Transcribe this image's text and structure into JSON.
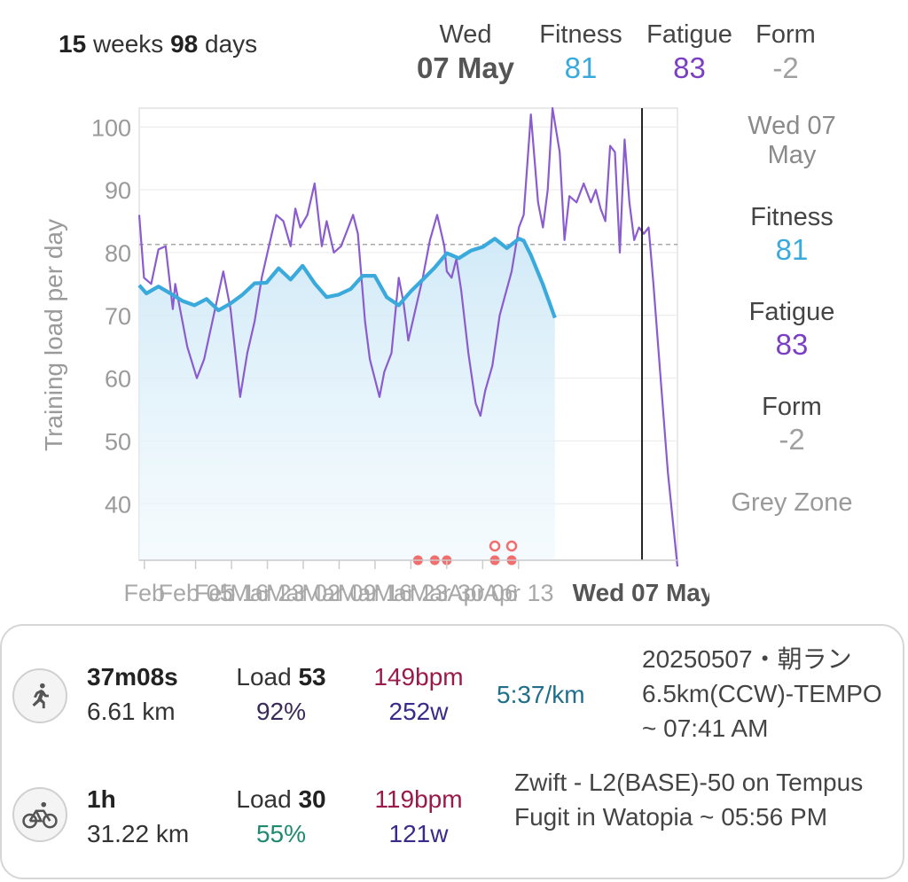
{
  "period": {
    "weeks_value": "15",
    "weeks_label": "weeks",
    "days_value": "98",
    "days_label": "days"
  },
  "header": {
    "day": "Wed",
    "date": "07 May",
    "fitness_label": "Fitness",
    "fitness_value": "81",
    "fatigue_label": "Fatigue",
    "fatigue_value": "83",
    "form_label": "Form",
    "form_value": "-2"
  },
  "side_panel": {
    "date": "Wed 07 May",
    "fitness_label": "Fitness",
    "fitness_value": "81",
    "fatigue_label": "Fatigue",
    "fatigue_value": "83",
    "form_label": "Form",
    "form_value": "-2",
    "zone": "Grey Zone"
  },
  "colors": {
    "fitness": "#3aa9dc",
    "fatigue": "#8a5ccf",
    "form": "#a0a0a0",
    "activity_dot": "#f26d6d",
    "hr": "#9a1a4a",
    "watt": "#3a2a8a",
    "pace": "#1f6f8b",
    "percent_green": "#1f8a6f",
    "percent_purple": "#3a2a5a"
  },
  "chart_data": {
    "type": "line",
    "ylabel": "Training load per day",
    "ylim": [
      31,
      103
    ],
    "yticks": [
      100,
      90,
      80,
      70,
      60,
      50,
      40
    ],
    "reference_line": 81.3,
    "x_tick_labels": [
      "Feb",
      "Feb 05",
      "Feb 16",
      "Mar 23",
      "Mar 02",
      "Mar 09",
      "Mar 16",
      "Mar 23",
      "Mar 30",
      "Apr 06",
      "Apr 13"
    ],
    "x_selected_label": "Wed 07 May",
    "x_start": "2025-01-29",
    "x_end": "2025-05-14",
    "selected": "2025-05-07",
    "series": [
      {
        "name": "Fitness",
        "values": [
          [
            0,
            74.8
          ],
          [
            3,
            73.5
          ],
          [
            8,
            74.6
          ],
          [
            13,
            73.5
          ],
          [
            18,
            72.3
          ],
          [
            23,
            71.6
          ],
          [
            28,
            72.6
          ],
          [
            33,
            70.8
          ],
          [
            38,
            71.9
          ],
          [
            43,
            73.3
          ],
          [
            48,
            75.1
          ],
          [
            53,
            75.2
          ],
          [
            58,
            77.5
          ],
          [
            63,
            75.7
          ],
          [
            68,
            77.9
          ],
          [
            73,
            75.1
          ],
          [
            78,
            72.9
          ],
          [
            83,
            73.3
          ],
          [
            88,
            74.2
          ],
          [
            93,
            76.3
          ],
          [
            98,
            76.3
          ],
          [
            103,
            72.9
          ],
          [
            108,
            71.6
          ],
          [
            113,
            73.8
          ],
          [
            118,
            75.7
          ],
          [
            123,
            77.6
          ],
          [
            128,
            79.9
          ],
          [
            133,
            79.1
          ],
          [
            138,
            80.3
          ],
          [
            143,
            80.9
          ],
          [
            148,
            82.2
          ],
          [
            153,
            80.7
          ],
          [
            158,
            82.2
          ],
          [
            160,
            81.9
          ],
          [
            163,
            79.6
          ],
          [
            168,
            74.9
          ],
          [
            173,
            69.6
          ]
        ]
      },
      {
        "name": "Fatigue",
        "values": [
          [
            0,
            86
          ],
          [
            2,
            76
          ],
          [
            5,
            75
          ],
          [
            8,
            80.5
          ],
          [
            11,
            81
          ],
          [
            14,
            71
          ],
          [
            15,
            75
          ],
          [
            18,
            69
          ],
          [
            20,
            65
          ],
          [
            24,
            60
          ],
          [
            27,
            63
          ],
          [
            31,
            70
          ],
          [
            35,
            77
          ],
          [
            38,
            71
          ],
          [
            42,
            57
          ],
          [
            45,
            64
          ],
          [
            48,
            69
          ],
          [
            51,
            76
          ],
          [
            54,
            81
          ],
          [
            57,
            86
          ],
          [
            60,
            85
          ],
          [
            63,
            81
          ],
          [
            65,
            87
          ],
          [
            67,
            84
          ],
          [
            70,
            86
          ],
          [
            73,
            91
          ],
          [
            76,
            81
          ],
          [
            78,
            85
          ],
          [
            81,
            80
          ],
          [
            84,
            81
          ],
          [
            87,
            84
          ],
          [
            89,
            86
          ],
          [
            91,
            83
          ],
          [
            94,
            69
          ],
          [
            96,
            63
          ],
          [
            100,
            57
          ],
          [
            102,
            61
          ],
          [
            105,
            64
          ],
          [
            108,
            76
          ],
          [
            110,
            72
          ],
          [
            112,
            66
          ],
          [
            115,
            71
          ],
          [
            118,
            76
          ],
          [
            121,
            82
          ],
          [
            124,
            86
          ],
          [
            127,
            81
          ],
          [
            128,
            77
          ],
          [
            130,
            76
          ],
          [
            132,
            79
          ],
          [
            134,
            74
          ],
          [
            137,
            64
          ],
          [
            140,
            56
          ],
          [
            142,
            54
          ],
          [
            144,
            58
          ],
          [
            147,
            62
          ],
          [
            150,
            70
          ],
          [
            155,
            77
          ],
          [
            158,
            84
          ],
          [
            160,
            86
          ],
          [
            163,
            102
          ],
          [
            166,
            88
          ],
          [
            168,
            84
          ],
          [
            170,
            90
          ],
          [
            172,
            103
          ],
          [
            175,
            96
          ],
          [
            177,
            82
          ],
          [
            179,
            89
          ],
          [
            182,
            88
          ],
          [
            185,
            91
          ],
          [
            188,
            88
          ],
          [
            190,
            90
          ],
          [
            192,
            87
          ],
          [
            194,
            85
          ],
          [
            196,
            97
          ],
          [
            198,
            96
          ],
          [
            200,
            80
          ],
          [
            202,
            98
          ],
          [
            204,
            88
          ],
          [
            206,
            82
          ],
          [
            208,
            84
          ],
          [
            210,
            83
          ],
          [
            212,
            84
          ],
          [
            214,
            75
          ],
          [
            217,
            60
          ],
          [
            220,
            45
          ],
          [
            224,
            30
          ]
        ]
      },
      {
        "name": "Sessions",
        "values": [
          [
            116,
            1
          ],
          [
            123,
            1
          ],
          [
            128,
            1
          ],
          [
            148,
            1
          ],
          [
            148,
            2
          ],
          [
            155,
            1
          ],
          [
            155,
            2
          ]
        ]
      }
    ]
  },
  "activities": [
    {
      "type": "running",
      "icon": "running-icon",
      "duration": "37m08s",
      "distance": "6.61 km",
      "load_label": "Load",
      "load_value": "53",
      "percent": "92%",
      "hr": "149bpm",
      "watts": "252w",
      "pace": "5:37/km",
      "description": "20250507・朝ラン 6.5km(CCW)-TEMPO ~ 07:41 AM"
    },
    {
      "type": "cycling",
      "icon": "cycling-icon",
      "duration": "1h",
      "distance": "31.22 km",
      "load_label": "Load",
      "load_value": "30",
      "percent": "55%",
      "hr": "119bpm",
      "watts": "121w",
      "pace": "",
      "description": "Zwift - L2(BASE)-50 on Tempus Fugit in Watopia ~ 05:56 PM"
    }
  ]
}
